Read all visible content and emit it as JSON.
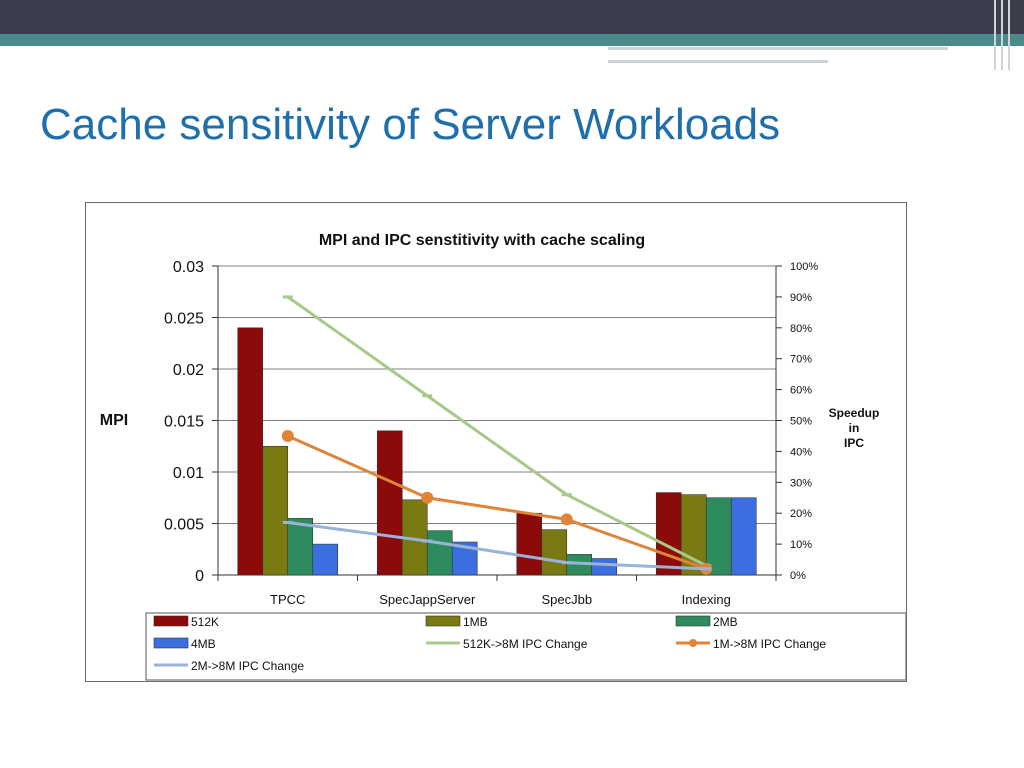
{
  "slide": {
    "title": "Cache sensitivity of Server Workloads"
  },
  "chart_data": {
    "type": "bar",
    "title": "MPI and IPC senstitivity with cache scaling",
    "ylabel": "MPI",
    "y2label": [
      "Speedup",
      "in",
      "IPC"
    ],
    "ylim": [
      0,
      0.03
    ],
    "y2lim": [
      0,
      100
    ],
    "y_ticks": [
      "0.03",
      "0.025",
      "0.02",
      "0.015",
      "0.01",
      "0.005",
      "0"
    ],
    "y2_ticks": [
      "100%",
      "90%",
      "80%",
      "70%",
      "60%",
      "50%",
      "40%",
      "30%",
      "20%",
      "10%",
      "0%"
    ],
    "categories": [
      "TPCC",
      "SpecJappServer",
      "SpecJbb",
      "Indexing"
    ],
    "series": [
      {
        "name": "512K",
        "kind": "bar",
        "color": "#8b0a0a",
        "values": [
          0.024,
          0.014,
          0.006,
          0.008
        ]
      },
      {
        "name": "1MB",
        "kind": "bar",
        "color": "#7a7a12",
        "values": [
          0.0125,
          0.0073,
          0.0044,
          0.0078
        ]
      },
      {
        "name": "2MB",
        "kind": "bar",
        "color": "#2e8b5e",
        "values": [
          0.0055,
          0.0043,
          0.002,
          0.0075
        ]
      },
      {
        "name": "4MB",
        "kind": "bar",
        "color": "#3b6fe0",
        "values": [
          0.003,
          0.0032,
          0.0016,
          0.0075
        ]
      },
      {
        "name": "512K->8M IPC Change",
        "kind": "line",
        "axis": "y2",
        "color": "#a8c98a",
        "marker": "dash",
        "values": [
          90,
          58,
          26,
          3
        ]
      },
      {
        "name": "1M->8M IPC Change",
        "kind": "line",
        "axis": "y2",
        "color": "#e0843a",
        "marker": "circle",
        "values": [
          45,
          25,
          18,
          2
        ]
      },
      {
        "name": "2M->8M IPC Change",
        "kind": "line",
        "axis": "y2",
        "color": "#9ab3d8",
        "marker": "dash",
        "values": [
          17,
          11,
          4,
          2
        ]
      }
    ],
    "legend_position": "bottom",
    "grid": true
  }
}
